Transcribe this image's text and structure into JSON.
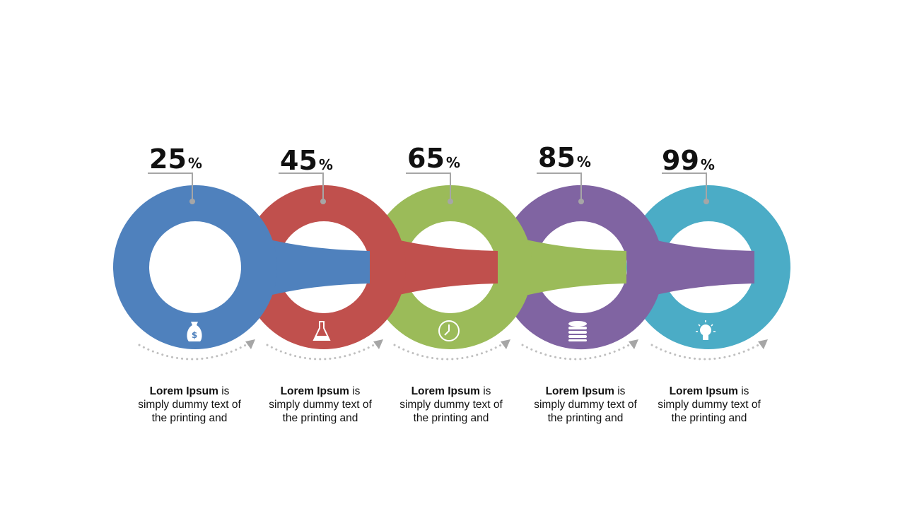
{
  "steps": [
    {
      "value": "25",
      "unit": "%",
      "color": "#4F81BD",
      "icon": "money-bag-icon",
      "desc_bold": "Lorem Ipsum",
      "desc_rest": " is simply dummy text of the printing and"
    },
    {
      "value": "45",
      "unit": "%",
      "color": "#C0504D",
      "icon": "flask-icon",
      "desc_bold": "Lorem Ipsum",
      "desc_rest": " is simply dummy text of the printing and"
    },
    {
      "value": "65",
      "unit": "%",
      "color": "#9BBB59",
      "icon": "clock-icon",
      "desc_bold": "Lorem Ipsum",
      "desc_rest": " is simply dummy text of the printing and"
    },
    {
      "value": "85",
      "unit": "%",
      "color": "#8064A2",
      "icon": "coin-stack-icon",
      "desc_bold": "Lorem Ipsum",
      "desc_rest": " is simply dummy text of the printing and"
    },
    {
      "value": "99",
      "unit": "%",
      "color": "#4BACC6",
      "icon": "lightbulb-icon",
      "desc_bold": "Lorem Ipsum",
      "desc_rest": " is simply dummy text of the printing and"
    }
  ],
  "connector_color": "#A6A6A6",
  "dots_color": "#BFBFBF"
}
